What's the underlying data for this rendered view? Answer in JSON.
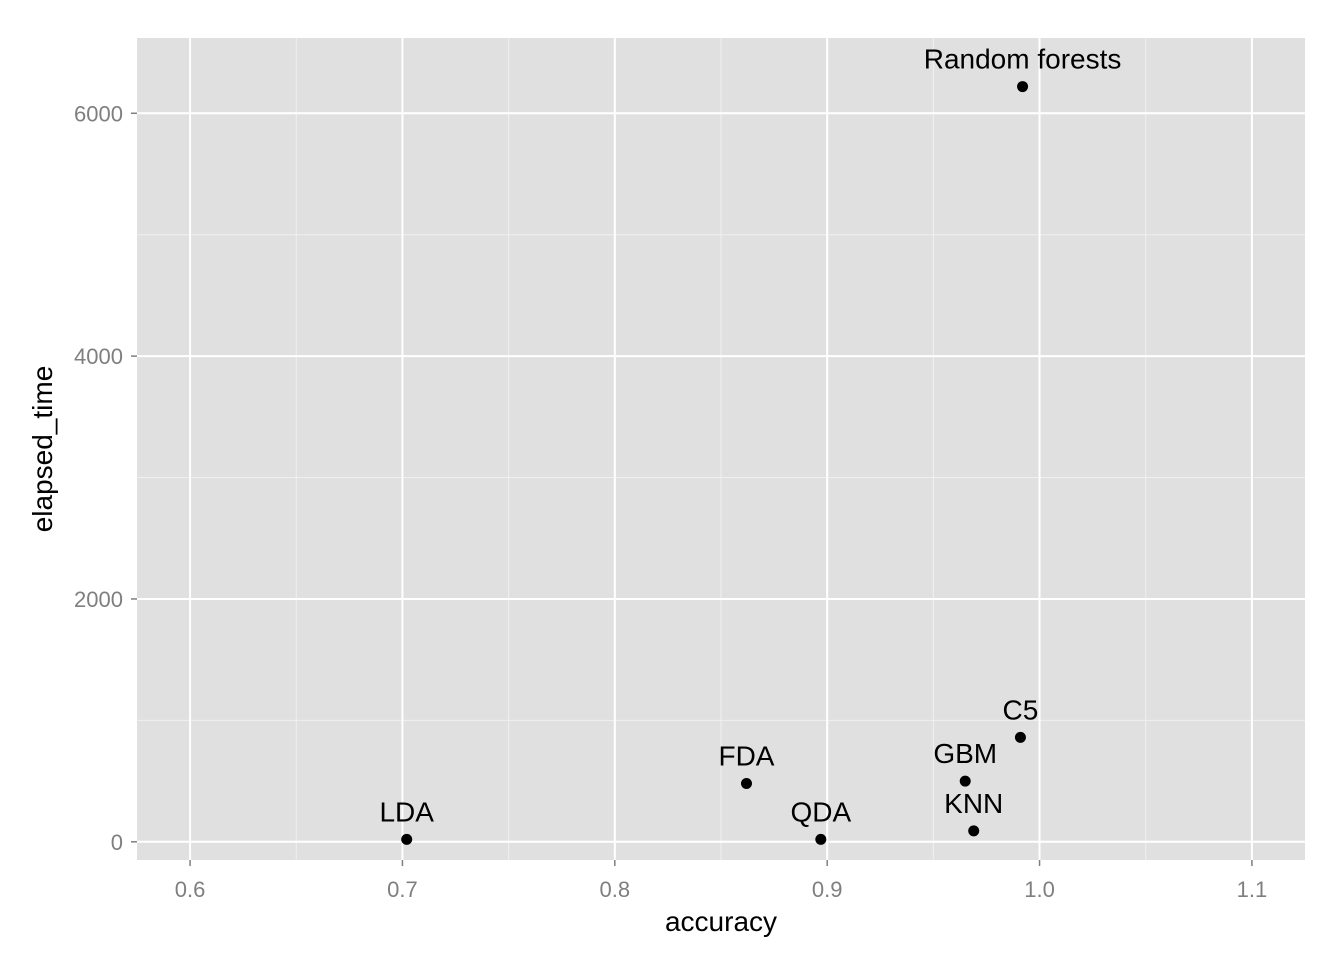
{
  "chart_data": {
    "type": "scatter",
    "title": "",
    "xlabel": "accuracy",
    "ylabel": "elapsed_time",
    "xlim": [
      0.575,
      1.125
    ],
    "ylim": [
      -150,
      6620
    ],
    "x_ticks": [
      0.6,
      0.7,
      0.8,
      0.9,
      1.0,
      1.1
    ],
    "x_tick_labels": [
      "0.6",
      "0.7",
      "0.8",
      "0.9",
      "1.0",
      "1.1"
    ],
    "y_ticks": [
      0,
      2000,
      4000,
      6000
    ],
    "y_tick_labels": [
      "0",
      "2000",
      "4000",
      "6000"
    ],
    "grid": true,
    "legend": false,
    "colors": {
      "panel_background": "#e0e0e0",
      "grid_major": "#ffffff",
      "grid_minor": "#f0f0f0",
      "point": "#000000",
      "tick_text": "#7f7f7f"
    },
    "points": [
      {
        "label": "LDA",
        "x": 0.702,
        "y": 20
      },
      {
        "label": "FDA",
        "x": 0.862,
        "y": 480
      },
      {
        "label": "QDA",
        "x": 0.897,
        "y": 20
      },
      {
        "label": "GBM",
        "x": 0.965,
        "y": 500
      },
      {
        "label": "KNN",
        "x": 0.969,
        "y": 90
      },
      {
        "label": "C5",
        "x": 0.991,
        "y": 860
      },
      {
        "label": "Random forests",
        "x": 0.992,
        "y": 6220
      }
    ]
  }
}
